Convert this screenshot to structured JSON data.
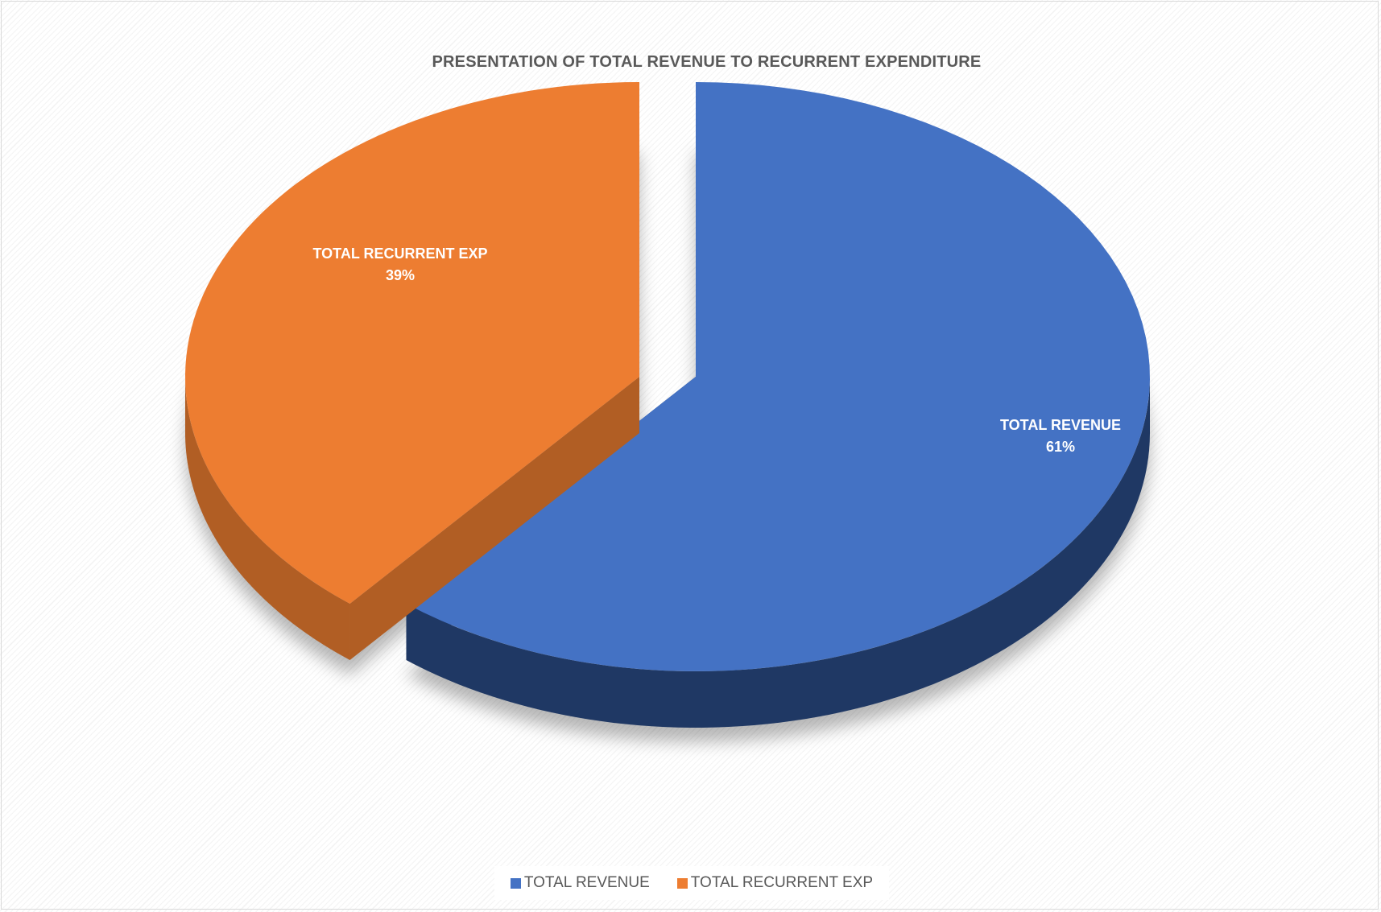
{
  "chart_data": {
    "type": "pie",
    "title": "PRESENTATION OF TOTAL REVENUE TO RECURRENT EXPENDITURE",
    "slices": [
      {
        "name": "TOTAL REVENUE",
        "value": 61,
        "percent_label": "61%",
        "color": "#4472c4",
        "side_color": "#1f3864"
      },
      {
        "name": "TOTAL RECURRENT EXP",
        "value": 39,
        "percent_label": "39%",
        "color": "#ed7d31",
        "side_color": "#b15e24"
      }
    ],
    "style": "3d-exploded",
    "legend_position": "bottom"
  }
}
